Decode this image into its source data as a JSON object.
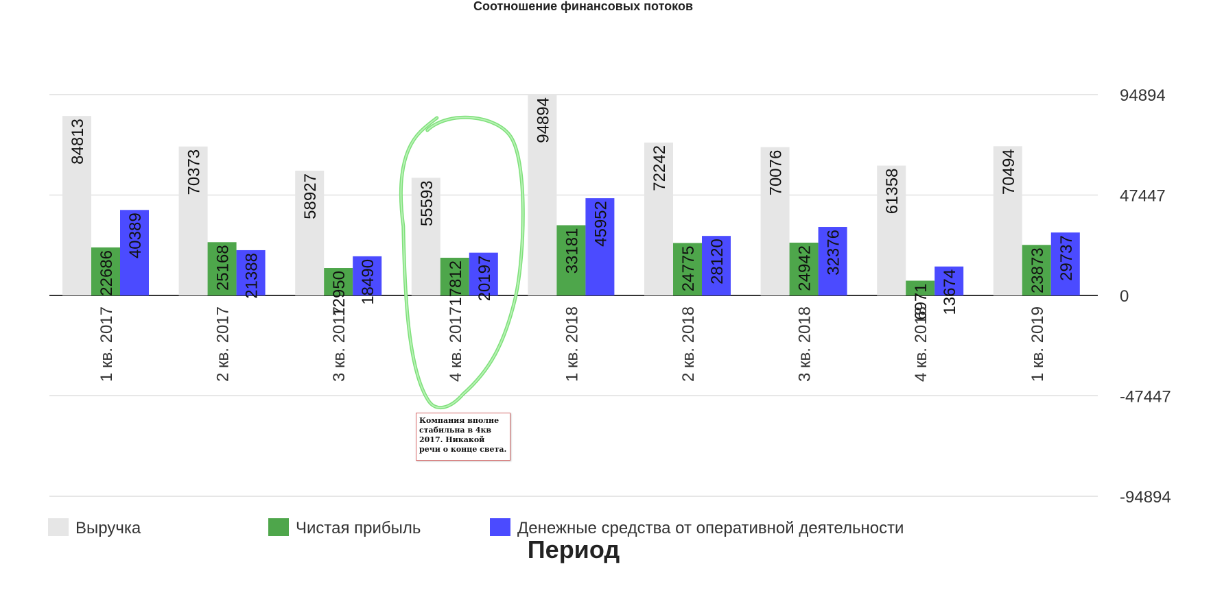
{
  "chart_data": {
    "type": "bar",
    "title": "Соотношение финансовых потоков",
    "xlabel": "Период",
    "categories": [
      "1 кв. 2017",
      "2 кв. 2017",
      "3 кв. 2017",
      "4 кв. 2017",
      "1 кв. 2018",
      "2 кв. 2018",
      "3 кв. 2018",
      "4 кв. 2018",
      "1 кв. 2019"
    ],
    "series": [
      {
        "name": "Выручка",
        "color": "#e6e6e6",
        "values": [
          84813,
          70373,
          58927,
          55593,
          94894,
          72242,
          70076,
          61358,
          70494
        ]
      },
      {
        "name": "Чистая прибыль",
        "color": "#4ea64b",
        "values": [
          22686,
          25168,
          12950,
          17812,
          33181,
          24775,
          24942,
          6971,
          23873
        ]
      },
      {
        "name": "Денежные средства от оперативной деятельности",
        "color": "#4b4bff",
        "values": [
          40389,
          21388,
          18490,
          20197,
          45952,
          28120,
          32376,
          13674,
          29737
        ]
      }
    ],
    "yticks": [
      94894,
      47447,
      0,
      -47447,
      -94894
    ],
    "ylim": [
      -94894,
      94894
    ],
    "y_axis_side": "right",
    "grid": true,
    "legend_position": "bottom-left",
    "annotation": {
      "category": "4 кв. 2017",
      "text": "Компания вполне стабильна в 4кв 2017. Никакой речи о конце света.",
      "highlight_color": "#7ee07a"
    }
  }
}
